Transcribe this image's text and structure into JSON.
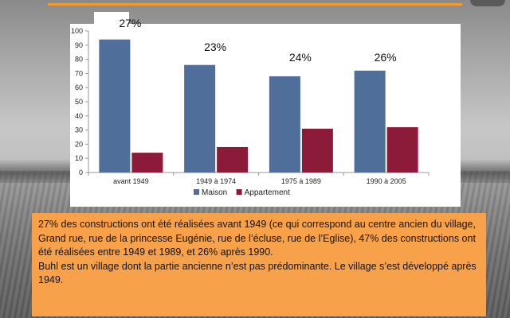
{
  "chart_data": {
    "type": "bar",
    "categories": [
      "avant 1949",
      "1949 à 1974",
      "1975 à 1989",
      "1990 à 2005"
    ],
    "series": [
      {
        "name": "Maison",
        "values": [
          94,
          76,
          68,
          72
        ],
        "color": "#4f6f9a"
      },
      {
        "name": "Appartement",
        "values": [
          14,
          18,
          31,
          32
        ],
        "color": "#8c1b3a"
      }
    ],
    "ylim": [
      0,
      100
    ],
    "yticks": [
      0,
      10,
      20,
      30,
      40,
      50,
      60,
      70,
      80,
      90,
      100
    ],
    "grid": false,
    "legend_position": "bottom",
    "annotations": [
      "27%",
      "23%",
      "24%",
      "26%"
    ]
  },
  "note": {
    "paragraph1": "27% des constructions ont été réalisées avant 1949 (ce qui correspond au centre ancien du village, Grand rue, rue de la princesse Eugénie, rue de l’écluse, rue de l’Eglise), 47% des constructions ont été réalisées entre 1949 et 1989, et 26% après 1990.",
    "paragraph2": "Buhl est un village dont la partie ancienne n’est pas prédominante. Le village s’est développé après 1949."
  },
  "colors": {
    "accent": "#f39a2a",
    "note_background": "#f7a24a"
  }
}
